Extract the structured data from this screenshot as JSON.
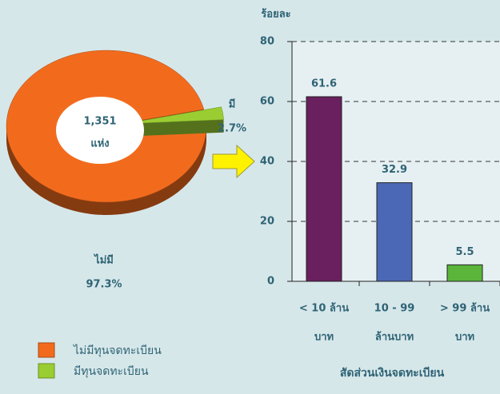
{
  "chart_data": [
    {
      "type": "pie",
      "categories": [
        "ไม่มีทุนจดทะเบียน",
        "มีทุนจดทะเบียน"
      ],
      "labels": [
        "ไม่มี",
        "มี"
      ],
      "values": [
        97.3,
        2.7
      ],
      "value_labels": [
        "97.3%",
        "2.7%"
      ],
      "colors": [
        "#f26b1d",
        "#9acd32"
      ],
      "center_label": [
        "1,351",
        "แห่ง"
      ]
    },
    {
      "type": "bar",
      "ylabel": "ร้อยละ",
      "xlabel": "สัดส่วนเงินจดทะเบียน",
      "categories": [
        [
          "< 10 ล้าน",
          "บาท"
        ],
        [
          "10 - 99",
          "ล้านบาท"
        ],
        [
          "> 99 ล้าน",
          "บาท"
        ]
      ],
      "values": [
        61.6,
        32.9,
        5.5
      ],
      "colors": [
        "#6a1f5f",
        "#4a68b5",
        "#5ab53a"
      ],
      "ylim": [
        0,
        80
      ],
      "yticks": [
        0,
        20,
        40,
        60,
        80
      ],
      "grid": true
    }
  ]
}
